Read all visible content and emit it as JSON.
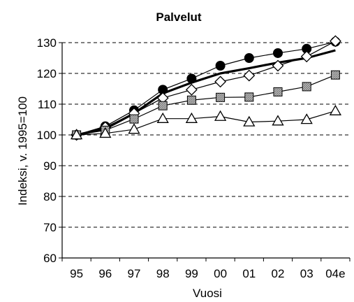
{
  "chart_data": {
    "type": "line",
    "title": "Palvelut",
    "xlabel": "Vuosi",
    "ylabel": "Indeksi, v. 1995=100",
    "categories": [
      "95",
      "96",
      "97",
      "98",
      "99",
      "00",
      "01",
      "02",
      "03",
      "04e"
    ],
    "ylim": [
      60,
      130
    ],
    "yticks": [
      60,
      70,
      80,
      90,
      100,
      110,
      120,
      130
    ],
    "grid": "horizontal-dashed",
    "legend": "none",
    "series": [
      {
        "marker": "circle-filled",
        "color": "#000000",
        "values": [
          100,
          102.8,
          108,
          114.7,
          118.3,
          122.5,
          125,
          126.6,
          128,
          130.3
        ]
      },
      {
        "marker": "diamond-open",
        "color": "#000000",
        "values": [
          100,
          102.5,
          107,
          112,
          114.7,
          117.3,
          119.3,
          122.5,
          125.5,
          130.5
        ]
      },
      {
        "marker": "none",
        "color": "#000000",
        "line_style": "thick",
        "values": [
          100,
          102,
          107,
          113.5,
          117,
          120,
          121.7,
          123.5,
          125,
          127.5
        ]
      },
      {
        "marker": "square-hatched",
        "color": "#000000",
        "values": [
          100,
          101.5,
          105.2,
          109.5,
          111.3,
          112.2,
          112.3,
          114,
          115.7,
          119.5
        ]
      },
      {
        "marker": "triangle-open",
        "color": "#000000",
        "values": [
          100,
          100.5,
          101.8,
          105.3,
          105.3,
          106,
          104.2,
          104.5,
          105,
          107.8
        ]
      }
    ]
  }
}
